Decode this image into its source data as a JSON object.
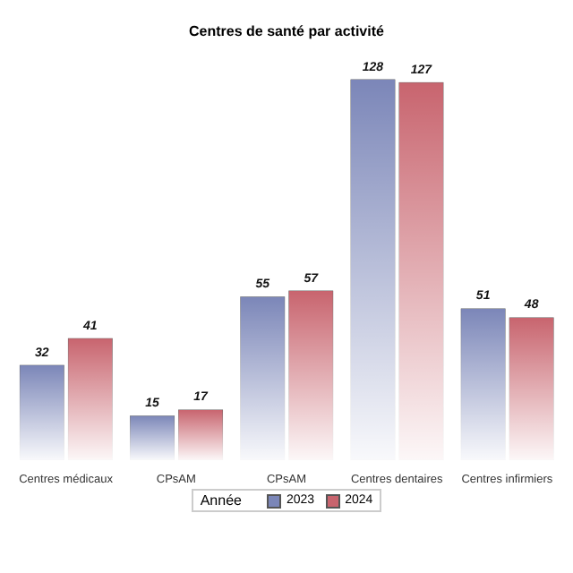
{
  "chart_data": {
    "type": "bar",
    "title": "Centres de santé par activité",
    "categories": [
      "Centres médicaux",
      "CPsAM",
      "CPsAM",
      "Centres dentaires",
      "Centres infirmiers"
    ],
    "series": [
      {
        "name": "2023",
        "color": "#7b86b8",
        "values": [
          32,
          15,
          55,
          128,
          51
        ]
      },
      {
        "name": "2024",
        "color": "#c8646e",
        "values": [
          41,
          17,
          57,
          127,
          48
        ]
      }
    ],
    "legend_title": "Année",
    "legend": "bottom",
    "data_labels": true
  }
}
